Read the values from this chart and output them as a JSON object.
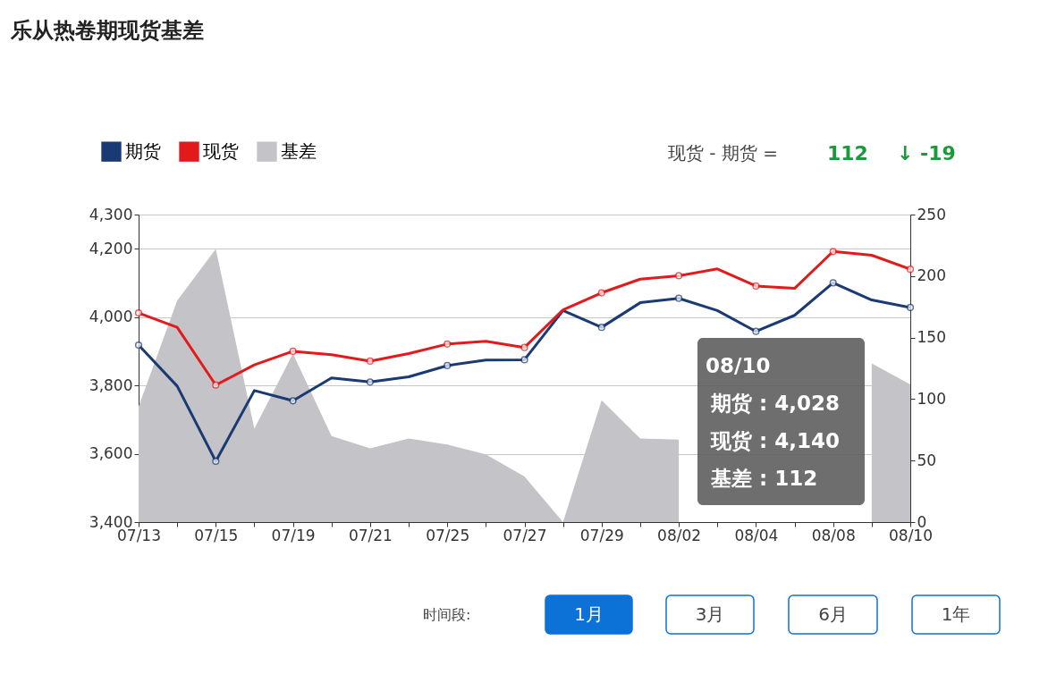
{
  "chart_data": {
    "type": "line",
    "title": "乐从热卷期现货基差",
    "categories": [
      "07/13",
      null,
      "07/15",
      null,
      "07/19",
      null,
      "07/21",
      null,
      "07/25",
      null,
      "07/27",
      null,
      "07/29",
      null,
      "08/02",
      null,
      "08/04",
      null,
      "08/08",
      null,
      "08/10"
    ],
    "series": [
      {
        "name": "期货",
        "color": "#1a3a73",
        "values": [
          3918,
          3798,
          3578,
          3785,
          3755,
          3822,
          3810,
          3825,
          3858,
          3874,
          3875,
          4019,
          3970,
          4042,
          4055,
          4019,
          3958,
          4005,
          4100,
          4050,
          4028
        ]
      },
      {
        "name": "现货",
        "color": "#e31a1c",
        "values": [
          4012,
          3970,
          3801,
          3860,
          3900,
          3890,
          3871,
          3893,
          3921,
          3929,
          3911,
          4021,
          4071,
          4111,
          4121,
          4141,
          4091,
          4084,
          4192,
          4181,
          4140
        ]
      },
      {
        "name": "基差",
        "color": "#c4c4c8",
        "type": "area",
        "axis": "y2",
        "marker": "none",
        "values": [
          94,
          180,
          222,
          76,
          137,
          70,
          60,
          68,
          63,
          55,
          37,
          0,
          99,
          68,
          67,
          null,
          null,
          null,
          null,
          129,
          112
        ]
      }
    ],
    "ylim": [
      3400,
      4300
    ],
    "yticks": [
      {
        "value": 3400,
        "label": "3,400"
      },
      {
        "value": 3600,
        "label": "3,600"
      },
      {
        "value": 3800,
        "label": "3,800"
      },
      {
        "value": 4000,
        "label": "4,000"
      },
      {
        "value": 4200,
        "label": "4,200"
      },
      {
        "value": 4300,
        "label": "4,300"
      }
    ],
    "y2lim": [
      0,
      250
    ],
    "y2ticks": [
      0,
      50,
      100,
      150,
      200,
      250
    ],
    "grid": "y",
    "legend": "top left",
    "marker": "circle",
    "line_style": "solid",
    "annotations": [
      "现货 - 期货 =",
      "112",
      "↓ -19",
      "时间段:",
      "1月",
      "3月",
      "6月",
      "1年",
      "08/10",
      "期货 : 4,028",
      "现货 : 4,140",
      "基差 : 112"
    ]
  }
}
